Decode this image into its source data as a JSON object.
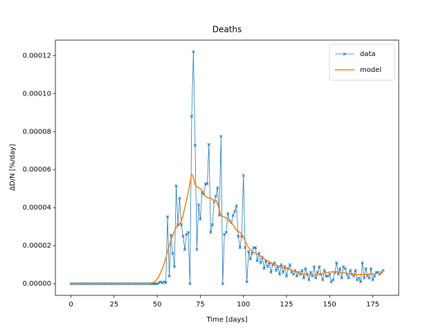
{
  "chart_data": {
    "type": "line",
    "title": "Deaths",
    "x_label": "Time [days]",
    "y_label": "ΔD/N [%/day]",
    "x": [
      0,
      1,
      2,
      3,
      4,
      5,
      6,
      7,
      8,
      9,
      10,
      11,
      12,
      13,
      14,
      15,
      16,
      17,
      18,
      19,
      20,
      21,
      22,
      23,
      24,
      25,
      26,
      27,
      28,
      29,
      30,
      31,
      32,
      33,
      34,
      35,
      36,
      37,
      38,
      39,
      40,
      41,
      42,
      43,
      44,
      45,
      46,
      47,
      48,
      49,
      50,
      51,
      52,
      53,
      54,
      55,
      56,
      57,
      58,
      59,
      60,
      61,
      62,
      63,
      64,
      65,
      66,
      67,
      68,
      69,
      70,
      71,
      72,
      73,
      74,
      75,
      76,
      77,
      78,
      79,
      80,
      81,
      82,
      83,
      84,
      85,
      86,
      87,
      88,
      89,
      90,
      91,
      92,
      93,
      94,
      95,
      96,
      97,
      98,
      99,
      100,
      101,
      102,
      103,
      104,
      105,
      106,
      107,
      108,
      109,
      110,
      111,
      112,
      113,
      114,
      115,
      116,
      117,
      118,
      119,
      120,
      121,
      122,
      123,
      124,
      125,
      126,
      127,
      128,
      129,
      130,
      131,
      132,
      133,
      134,
      135,
      136,
      137,
      138,
      139,
      140,
      141,
      142,
      143,
      144,
      145,
      146,
      147,
      148,
      149,
      150,
      151,
      152,
      153,
      154,
      155,
      156,
      157,
      158,
      159,
      160,
      161,
      162,
      163,
      164,
      165,
      166,
      167,
      168,
      169,
      170,
      171,
      172,
      173,
      174,
      175,
      176,
      177,
      178,
      179,
      180,
      181
    ],
    "series": [
      {
        "name": "data",
        "color": "#1f77b4",
        "marker": "x",
        "values": [
          0,
          0,
          0,
          0,
          0,
          0,
          0,
          0,
          0,
          0,
          0,
          0,
          0,
          0,
          0,
          0,
          0,
          0,
          0,
          0,
          0,
          0,
          0,
          0,
          0,
          0,
          0,
          0,
          0,
          0,
          0,
          0,
          0,
          0,
          0,
          0,
          0,
          0,
          0,
          0,
          0,
          0,
          0,
          0,
          0,
          0,
          0,
          0,
          0,
          0,
          0,
          5e-07,
          1e-06,
          5e-07,
          1e-06,
          5e-07,
          3.52e-05,
          4e-06,
          2.55e-05,
          1.6e-05,
          9e-06,
          5.15e-05,
          3.1e-05,
          4.5e-05,
          3.1e-05,
          2.5e-05,
          1.8e-05,
          2.6e-05,
          2.7e-05,
          0,
          8.8e-05,
          0.000122,
          7.28e-05,
          1.8e-05,
          4.15e-05,
          3.4e-05,
          4.8e-05,
          4.7e-05,
          5.25e-05,
          5.25e-05,
          7.32e-05,
          2.7e-05,
          3.1e-05,
          4.3e-05,
          4.6e-05,
          5.05e-05,
          3.6e-05,
          7.75e-05,
          0,
          2.6e-05,
          2.7e-05,
          3.7e-05,
          3.3e-05,
          3.2e-05,
          3.6e-05,
          3.8e-05,
          4.1e-05,
          2.5e-05,
          1.9e-05,
          2.5e-05,
          5.7e-05,
          1.9e-05,
          1e-06,
          1.7e-05,
          1.3e-05,
          1.6e-05,
          1.9e-05,
          1.9e-05,
          1.2e-05,
          1.6e-05,
          1.1e-05,
          1.4e-05,
          8e-06,
          1.2e-05,
          9e-06,
          1.1e-05,
          6e-06,
          1e-05,
          1.1e-05,
          7e-06,
          9e-06,
          5e-06,
          1e-05,
          6e-06,
          9e-06,
          4e-06,
          8e-06,
          1e-05,
          6e-06,
          5e-06,
          7e-06,
          4e-06,
          6e-06,
          5e-06,
          7e-06,
          3e-06,
          8e-06,
          5e-06,
          2e-06,
          6e-06,
          4e-06,
          9e-06,
          3e-06,
          6e-06,
          9e-06,
          5e-06,
          2e-06,
          7e-06,
          4e-06,
          4e-06,
          5e-06,
          1e-06,
          2e-06,
          6e-06,
          1.1e-05,
          5e-06,
          8e-06,
          3e-06,
          9e-06,
          8e-06,
          5e-06,
          3e-06,
          7e-06,
          5e-06,
          4e-06,
          7e-06,
          2e-06,
          3e-06,
          1e-06,
          1.1e-05,
          3e-06,
          8e-06,
          4e-06,
          3e-06,
          8e-06,
          2e-06,
          4e-06,
          6e-06,
          6e-06,
          5e-06,
          6e-06,
          7e-06
        ]
      },
      {
        "name": "model",
        "color": "#ff7f0e",
        "values": [
          0,
          0,
          0,
          0,
          0,
          0,
          0,
          0,
          0,
          0,
          0,
          0,
          0,
          0,
          0,
          0,
          0,
          0,
          0,
          0,
          0,
          0,
          0,
          0,
          0,
          0,
          0,
          0,
          0,
          0,
          0,
          0,
          0,
          0,
          0,
          0,
          0,
          0,
          0,
          0,
          0,
          0,
          0,
          0,
          0,
          1e-07,
          2e-07,
          4e-07,
          8e-07,
          1.5e-06,
          2.5e-06,
          4e-06,
          6e-06,
          8e-06,
          1.05e-05,
          1.35e-05,
          1.7e-05,
          2e-05,
          2.3e-05,
          2.55e-05,
          2.75e-05,
          2.95e-05,
          3.05e-05,
          3.15e-05,
          3.3e-05,
          3.6e-05,
          4e-05,
          4.4e-05,
          4.8e-05,
          5.3e-05,
          5.75e-05,
          5.6e-05,
          5.2e-05,
          5.1e-05,
          5.05e-05,
          5e-05,
          4.9e-05,
          4.75e-05,
          4.6e-05,
          4.55e-05,
          4.5e-05,
          4.5e-05,
          4.45e-05,
          4.3e-05,
          4.4e-05,
          4.2e-05,
          3.9e-05,
          3.6e-05,
          3.55e-05,
          3.5e-05,
          3.45e-05,
          3.4e-05,
          3.3e-05,
          3.2e-05,
          3.1e-05,
          2.95e-05,
          2.8e-05,
          2.75e-05,
          2.7e-05,
          2.6e-05,
          2.45e-05,
          2.25e-05,
          2.05e-05,
          1.9e-05,
          1.8e-05,
          1.7e-05,
          1.65e-05,
          1.6e-05,
          1.55e-05,
          1.5e-05,
          1.45e-05,
          1.4e-05,
          1.3e-05,
          1.25e-05,
          1.2e-05,
          1.15e-05,
          1.1e-05,
          1.05e-05,
          1e-05,
          9.8e-06,
          9.5e-06,
          9.2e-06,
          8.8e-06,
          8.5e-06,
          8.2e-06,
          8e-06,
          7.7e-06,
          7.4e-06,
          7e-06,
          6.7e-06,
          6.4e-06,
          6.1e-06,
          5.8e-06,
          5.5e-06,
          5.2e-06,
          5e-06,
          4.8e-06,
          4.6e-06,
          4.5e-06,
          4.4e-06,
          4.4e-06,
          4.5e-06,
          4.6e-06,
          4.8e-06,
          5e-06,
          5.2e-06,
          5.4e-06,
          5.6e-06,
          5.8e-06,
          6e-06,
          6.1e-06,
          6.2e-06,
          6.3e-06,
          6.3e-06,
          6.3e-06,
          6.2e-06,
          6.1e-06,
          6e-06,
          5.8e-06,
          5.7e-06,
          5.5e-06,
          5.4e-06,
          5.2e-06,
          5.1e-06,
          5e-06,
          4.9e-06,
          4.8e-06,
          4.8e-06,
          4.8e-06,
          4.8e-06,
          4.8e-06,
          4.9e-06,
          5e-06,
          5e-06,
          5.1e-06,
          5.2e-06,
          5.3e-06,
          5.4e-06,
          5.5e-06,
          5.6e-06,
          5.7e-06,
          5.8e-06
        ]
      }
    ],
    "xlim": [
      -9.05,
      190.05
    ],
    "xticks": [
      0,
      25,
      50,
      75,
      100,
      125,
      150,
      175
    ],
    "ylim": [
      -6.1e-06,
      0.0001281
    ],
    "yticks": [
      {
        "value": 0,
        "label": "0.00000"
      },
      {
        "value": 2e-05,
        "label": "0.00002"
      },
      {
        "value": 4e-05,
        "label": "0.00004"
      },
      {
        "value": 6e-05,
        "label": "0.00006"
      },
      {
        "value": 8e-05,
        "label": "0.00008"
      },
      {
        "value": 0.0001,
        "label": "0.00010"
      },
      {
        "value": 0.00012,
        "label": "0.00012"
      }
    ],
    "grid": false,
    "legend": "upper right"
  }
}
